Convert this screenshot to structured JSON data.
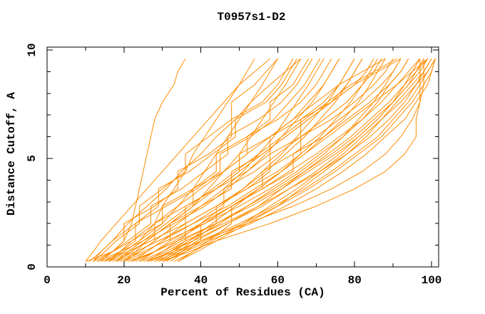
{
  "chart_data": {
    "type": "line",
    "title": "T0957s1-D2",
    "xlabel": "Percent of Residues (CA)",
    "ylabel": "Distance Cutoff, A",
    "xlim": [
      0,
      101.9
    ],
    "ylim": [
      0,
      10.13
    ],
    "xticks_major": [
      0,
      20,
      40,
      60,
      80,
      100
    ],
    "xticks_minor": [
      10,
      30,
      50,
      70,
      90
    ],
    "yticks_major": [
      0,
      5,
      10
    ],
    "yticks_minor": [
      1,
      2,
      3,
      4,
      6,
      7,
      8,
      9
    ],
    "grid": false,
    "legend": "none",
    "line_color": "#ff8c00",
    "axis_color": "#000000",
    "background": "#ffffff",
    "series_note": "Each series is one model's curve: percent of CA residues (x) under each distance cutoff in Angstroms (y). Percents sampled at the shared cutoffs grid.",
    "cutoffs": [
      0.25,
      0.7,
      1.2,
      2.0,
      2.8,
      3.6,
      4.4,
      5.2,
      6.0,
      6.8,
      7.6,
      8.4,
      9.0,
      9.6
    ],
    "series": [
      [
        12,
        17,
        20,
        22,
        23,
        24,
        25,
        26,
        27,
        28,
        30,
        33,
        34,
        36
      ],
      [
        14,
        20,
        24,
        28,
        30,
        33,
        36,
        38,
        41,
        44,
        47,
        50,
        52,
        54
      ],
      [
        10,
        17,
        22,
        30,
        34,
        38,
        41,
        44,
        47,
        50,
        53,
        56,
        58,
        60
      ],
      [
        16,
        22,
        26,
        32,
        38,
        42,
        46,
        50,
        53,
        56,
        59,
        62,
        64,
        66
      ],
      [
        18,
        24,
        28,
        34,
        40,
        46,
        51,
        55,
        59,
        62,
        65,
        68,
        70,
        72
      ],
      [
        13,
        19,
        25,
        33,
        41,
        47,
        52,
        57,
        61,
        65,
        69,
        72,
        74,
        76
      ],
      [
        20,
        26,
        30,
        38,
        45,
        51,
        56,
        61,
        65,
        69,
        73,
        76,
        78,
        80
      ],
      [
        15,
        21,
        27,
        36,
        44,
        51,
        57,
        62,
        67,
        71,
        75,
        78,
        80,
        82
      ],
      [
        22,
        28,
        33,
        41,
        48,
        55,
        61,
        66,
        71,
        75,
        79,
        82,
        84,
        86
      ],
      [
        17,
        23,
        29,
        38,
        47,
        54,
        61,
        67,
        72,
        77,
        81,
        84,
        86,
        88
      ],
      [
        24,
        30,
        35,
        44,
        52,
        59,
        66,
        72,
        77,
        81,
        85,
        88,
        90,
        92
      ],
      [
        19,
        25,
        31,
        41,
        50,
        58,
        65,
        71,
        77,
        82,
        86,
        89,
        92,
        94
      ],
      [
        26,
        32,
        38,
        47,
        56,
        63,
        70,
        76,
        81,
        86,
        90,
        93,
        95,
        97
      ],
      [
        21,
        28,
        34,
        44,
        53,
        61,
        68,
        75,
        81,
        86,
        90,
        94,
        97,
        99
      ],
      [
        28,
        34,
        40,
        50,
        59,
        67,
        74,
        80,
        86,
        90,
        94,
        97,
        99,
        101
      ],
      [
        30,
        36,
        42,
        53,
        62,
        70,
        77,
        83,
        88,
        93,
        96,
        99,
        100,
        101
      ],
      [
        25,
        31,
        36,
        46,
        55,
        63,
        71,
        78,
        84,
        89,
        93,
        96,
        98,
        100
      ],
      [
        23,
        28,
        32,
        40,
        48,
        56,
        63,
        70,
        76,
        82,
        87,
        91,
        94,
        97
      ],
      [
        27,
        32,
        37,
        45,
        52,
        60,
        67,
        74,
        80,
        85,
        90,
        94,
        96,
        98
      ],
      [
        29,
        35,
        41,
        51,
        60,
        68,
        75,
        81,
        87,
        91,
        95,
        98,
        100,
        101
      ],
      [
        12,
        15,
        18,
        24,
        24,
        30,
        36,
        36,
        42,
        48,
        48,
        54,
        57,
        60
      ],
      [
        14,
        17,
        20,
        20,
        28,
        34,
        34,
        42,
        48,
        48,
        56,
        60,
        62,
        64
      ],
      [
        16,
        20,
        24,
        30,
        30,
        38,
        44,
        44,
        52,
        58,
        58,
        64,
        66,
        68
      ],
      [
        11,
        14,
        17,
        23,
        29,
        29,
        37,
        43,
        49,
        49,
        57,
        61,
        63,
        65
      ],
      [
        13,
        17,
        21,
        27,
        27,
        35,
        41,
        47,
        47,
        55,
        61,
        65,
        67,
        69
      ],
      [
        15,
        19,
        23,
        23,
        31,
        39,
        45,
        45,
        53,
        59,
        63,
        67,
        69,
        71
      ],
      [
        18,
        22,
        26,
        32,
        38,
        38,
        46,
        52,
        52,
        60,
        66,
        70,
        72,
        74
      ],
      [
        20,
        24,
        28,
        28,
        36,
        44,
        50,
        50,
        58,
        64,
        68,
        72,
        74,
        76
      ],
      [
        22,
        26,
        30,
        36,
        36,
        44,
        52,
        58,
        58,
        66,
        72,
        76,
        78,
        80
      ],
      [
        24,
        28,
        32,
        32,
        40,
        48,
        48,
        56,
        62,
        68,
        74,
        78,
        80,
        82
      ],
      [
        26,
        30,
        34,
        40,
        46,
        46,
        54,
        60,
        66,
        66,
        74,
        80,
        83,
        85
      ],
      [
        28,
        32,
        36,
        36,
        44,
        52,
        58,
        58,
        66,
        72,
        78,
        82,
        85,
        87
      ],
      [
        30,
        34,
        38,
        44,
        44,
        52,
        60,
        66,
        66,
        74,
        80,
        85,
        88,
        90
      ],
      [
        32,
        36,
        40,
        40,
        48,
        56,
        56,
        64,
        70,
        76,
        82,
        87,
        90,
        92
      ],
      [
        34,
        38,
        42,
        48,
        48,
        56,
        64,
        64,
        72,
        78,
        84,
        89,
        92,
        94
      ],
      [
        30,
        37,
        44,
        58,
        70,
        80,
        88,
        93,
        96,
        96,
        97,
        97,
        97,
        97
      ],
      [
        26,
        33,
        40,
        52,
        64,
        74,
        82,
        88,
        92,
        95,
        97,
        98,
        98,
        98
      ],
      [
        20,
        23,
        26,
        32,
        38,
        44,
        50,
        56,
        62,
        68,
        74,
        80,
        86,
        92
      ],
      [
        10,
        12,
        14,
        18,
        22,
        26,
        30,
        34,
        38,
        42,
        46,
        50,
        54,
        58
      ],
      [
        12,
        14,
        17,
        21,
        26,
        31,
        35,
        40,
        44,
        49,
        53,
        58,
        62,
        66
      ],
      [
        34,
        39,
        44,
        52,
        60,
        66,
        72,
        78,
        83,
        87,
        91,
        95,
        98,
        100
      ],
      [
        31,
        35,
        39,
        47,
        55,
        61,
        67,
        73,
        79,
        84,
        89,
        93,
        96,
        99
      ],
      [
        33,
        38,
        43,
        51,
        58,
        65,
        71,
        77,
        82,
        87,
        92,
        96,
        99,
        101
      ],
      [
        29,
        33,
        37,
        43,
        49,
        55,
        61,
        67,
        73,
        79,
        85,
        91,
        95,
        99
      ],
      [
        16,
        19,
        22,
        28,
        34,
        40,
        46,
        52,
        58,
        64,
        70,
        76,
        82,
        88
      ],
      [
        18,
        21,
        25,
        31,
        37,
        43,
        49,
        55,
        61,
        67,
        73,
        79,
        85,
        91
      ]
    ]
  }
}
